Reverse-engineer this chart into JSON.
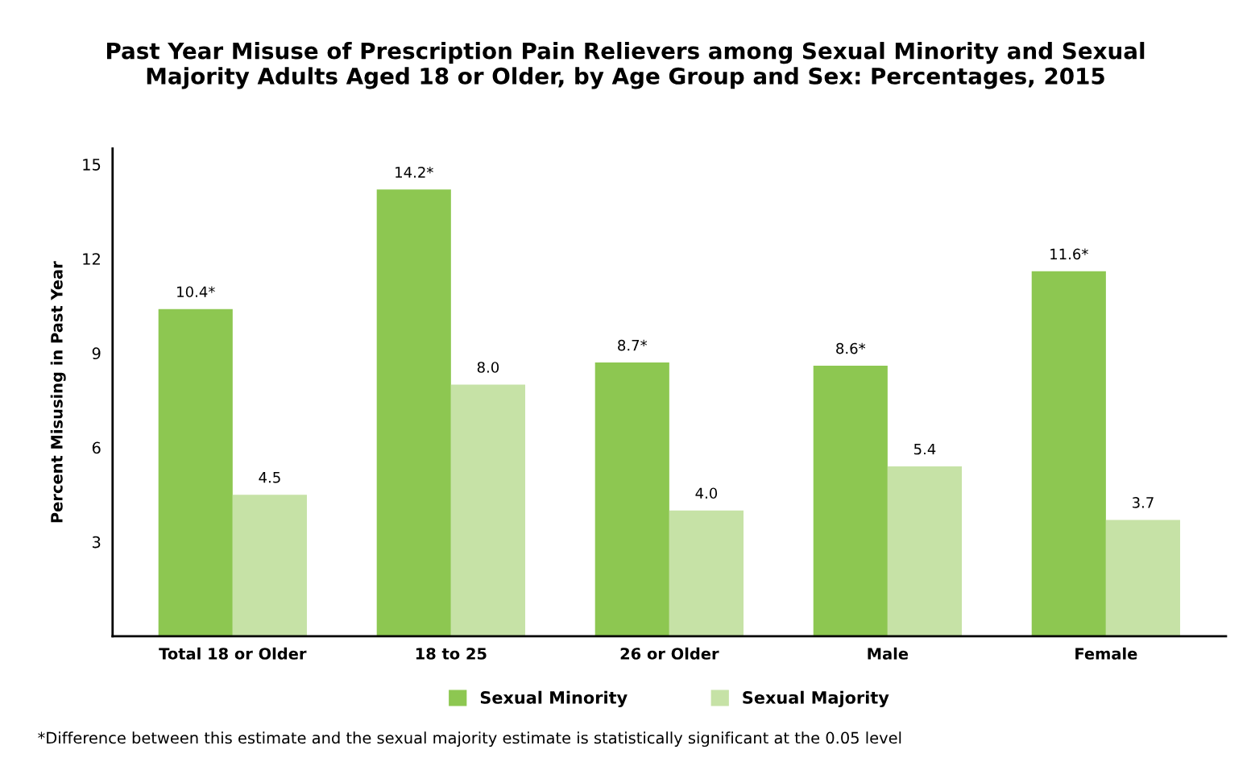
{
  "chart_data": {
    "type": "bar",
    "title": "Past Year Misuse of Prescription Pain Relievers among Sexual Minority and Sexual\nMajority Adults Aged 18 or Older, by Age Group and Sex: Percentages, 2015",
    "ylabel": "Percent Misusing in Past Year",
    "categories": [
      "Total 18 or Older",
      "18 to 25",
      "26 or Older",
      "Male",
      "Female"
    ],
    "series": [
      {
        "name": "Sexual Minority",
        "color": "#8dc751",
        "values": [
          10.4,
          14.2,
          8.7,
          8.6,
          11.6
        ],
        "value_labels": [
          "10.4*",
          "14.2*",
          "8.7*",
          "8.6*",
          "11.6*"
        ]
      },
      {
        "name": "Sexual Majority",
        "color": "#c6e2a6",
        "values": [
          4.5,
          8.0,
          4.0,
          5.4,
          3.7
        ],
        "value_labels": [
          "4.5",
          "8.0",
          "4.0",
          "5.4",
          "3.7"
        ]
      }
    ],
    "ylim": [
      0,
      15.5
    ],
    "yticks": [
      3,
      6,
      9,
      12,
      15
    ],
    "grid": false,
    "legend": "bottom",
    "annotations": [
      "*Difference between this estimate and the sexual majority estimate is statistically significant at the 0.05 level"
    ]
  }
}
